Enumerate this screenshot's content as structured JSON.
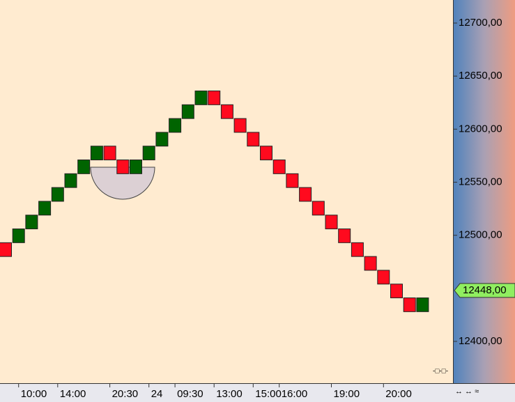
{
  "chart_data": {
    "type": "renko",
    "categories": [
      null,
      "10:00",
      null,
      null,
      "14:00",
      null,
      null,
      null,
      "20:30",
      null,
      null,
      "24",
      null,
      "09:30",
      null,
      null,
      "13:00",
      null,
      null,
      "15:00",
      null,
      "16:00",
      null,
      null,
      null,
      "19:00",
      null,
      null,
      null,
      "20:00",
      null,
      null,
      null
    ],
    "open": [
      12493,
      12493,
      12506,
      12519,
      12532,
      12545,
      12558,
      12571,
      12584,
      12571,
      12558,
      12571,
      12584,
      12597,
      12610,
      12623,
      12636,
      12623,
      12610,
      12597,
      12584,
      12571,
      12558,
      12545,
      12532,
      12519,
      12506,
      12493,
      12480,
      12467,
      12454,
      12441,
      12428
    ],
    "close": [
      12480,
      12506,
      12519,
      12532,
      12545,
      12558,
      12571,
      12584,
      12571,
      12558,
      12571,
      12584,
      12597,
      12610,
      12623,
      12636,
      12623,
      12610,
      12597,
      12584,
      12571,
      12558,
      12545,
      12532,
      12519,
      12506,
      12493,
      12480,
      12467,
      12454,
      12441,
      12428,
      12441
    ],
    "up_color": "#006400",
    "down_color": "#ff0a1e",
    "ylim": [
      12360.6,
      12721.7
    ],
    "yticks": [
      {
        "value": 12400,
        "label": "12400,00"
      },
      {
        "value": 12500,
        "label": "12500,00"
      },
      {
        "value": 12550,
        "label": "12550,00"
      },
      {
        "value": 12600,
        "label": "12600,00"
      },
      {
        "value": 12650,
        "label": "12650,00"
      },
      {
        "value": 12700,
        "label": "12700,00"
      }
    ],
    "last_value": {
      "value": 12448,
      "label": "12448,00"
    }
  }
}
